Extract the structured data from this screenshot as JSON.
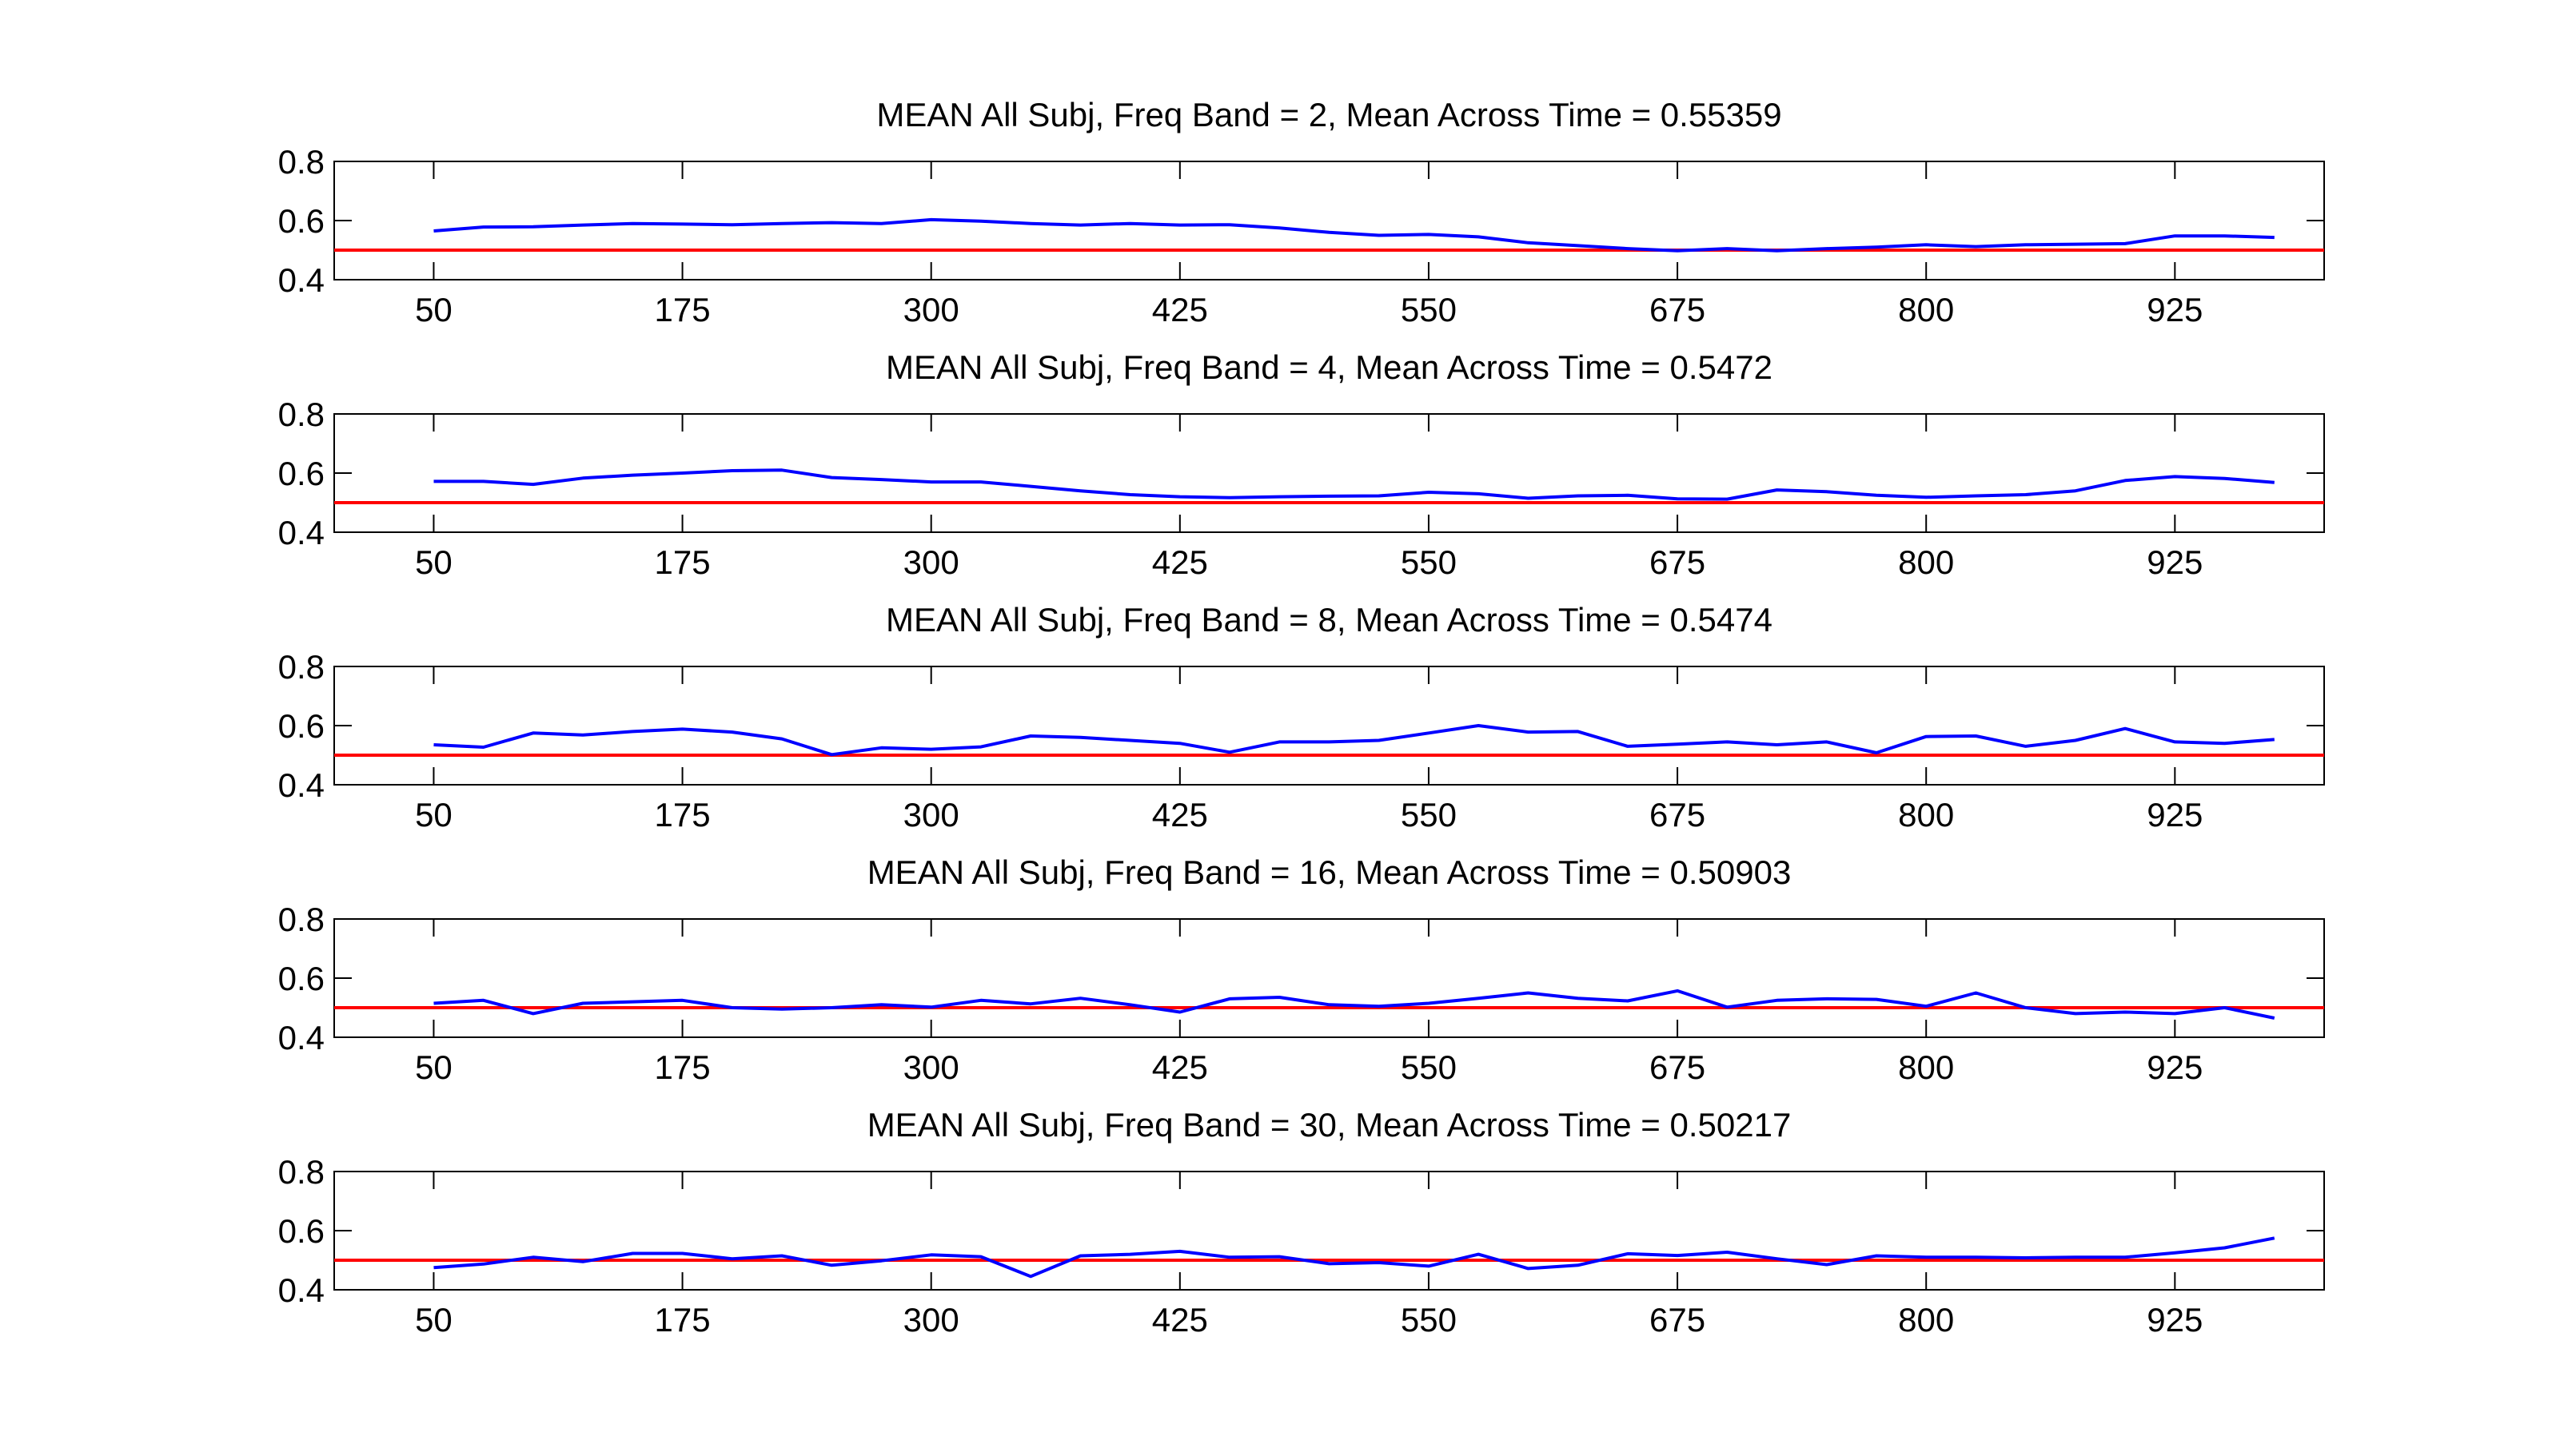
{
  "colors": {
    "series": "#0000ff",
    "reference": "#ff0000",
    "axes": "#000000",
    "background": "#ffffff"
  },
  "chart_data": [
    {
      "type": "line",
      "title": "MEAN All Subj, Freq Band =  2, Mean Across Time = 0.55359",
      "xlabel": "",
      "ylabel": "",
      "xlim": [
        0,
        1000
      ],
      "ylim": [
        0.4,
        0.8
      ],
      "xticks": [
        50,
        175,
        300,
        425,
        550,
        675,
        800,
        925
      ],
      "yticks": [
        0.4,
        0.6,
        0.8
      ],
      "reference_line": 0.5,
      "grid": false,
      "x": [
        50,
        75,
        100,
        125,
        150,
        175,
        200,
        225,
        250,
        275,
        300,
        325,
        350,
        375,
        400,
        425,
        450,
        475,
        500,
        525,
        550,
        575,
        600,
        625,
        650,
        675,
        700,
        725,
        750,
        775,
        800,
        825,
        850,
        875,
        900,
        925,
        950,
        975
      ],
      "series": [
        {
          "values": [
            0.565,
            0.578,
            0.579,
            0.585,
            0.59,
            0.588,
            0.586,
            0.59,
            0.593,
            0.59,
            0.603,
            0.598,
            0.59,
            0.585,
            0.59,
            0.585,
            0.586,
            0.575,
            0.56,
            0.55,
            0.553,
            0.545,
            0.525,
            0.515,
            0.505,
            0.498,
            0.505,
            0.498,
            0.505,
            0.51,
            0.518,
            0.512,
            0.518,
            0.52,
            0.522,
            0.548,
            0.548,
            0.543
          ]
        }
      ]
    },
    {
      "type": "line",
      "title": "MEAN All Subj, Freq Band =  4, Mean Across Time = 0.5472",
      "xlabel": "",
      "ylabel": "",
      "xlim": [
        0,
        1000
      ],
      "ylim": [
        0.4,
        0.8
      ],
      "xticks": [
        50,
        175,
        300,
        425,
        550,
        675,
        800,
        925
      ],
      "yticks": [
        0.4,
        0.6,
        0.8
      ],
      "reference_line": 0.5,
      "grid": false,
      "x": [
        50,
        75,
        100,
        125,
        150,
        175,
        200,
        225,
        250,
        275,
        300,
        325,
        350,
        375,
        400,
        425,
        450,
        475,
        500,
        525,
        550,
        575,
        600,
        625,
        650,
        675,
        700,
        725,
        750,
        775,
        800,
        825,
        850,
        875,
        900,
        925,
        950,
        975
      ],
      "series": [
        {
          "values": [
            0.572,
            0.572,
            0.562,
            0.583,
            0.593,
            0.6,
            0.608,
            0.61,
            0.585,
            0.578,
            0.57,
            0.57,
            0.555,
            0.54,
            0.527,
            0.52,
            0.517,
            0.52,
            0.522,
            0.523,
            0.535,
            0.53,
            0.515,
            0.523,
            0.525,
            0.513,
            0.512,
            0.543,
            0.537,
            0.525,
            0.518,
            0.523,
            0.527,
            0.54,
            0.575,
            0.588,
            0.582,
            0.568
          ]
        }
      ]
    },
    {
      "type": "line",
      "title": "MEAN All Subj, Freq Band =  8, Mean Across Time = 0.5474",
      "xlabel": "",
      "ylabel": "",
      "xlim": [
        0,
        1000
      ],
      "ylim": [
        0.4,
        0.8
      ],
      "xticks": [
        50,
        175,
        300,
        425,
        550,
        675,
        800,
        925
      ],
      "yticks": [
        0.4,
        0.6,
        0.8
      ],
      "reference_line": 0.5,
      "grid": false,
      "x": [
        50,
        75,
        100,
        125,
        150,
        175,
        200,
        225,
        250,
        275,
        300,
        325,
        350,
        375,
        400,
        425,
        450,
        475,
        500,
        525,
        550,
        575,
        600,
        625,
        650,
        675,
        700,
        725,
        750,
        775,
        800,
        825,
        850,
        875,
        900,
        925,
        950,
        975
      ],
      "series": [
        {
          "values": [
            0.535,
            0.527,
            0.575,
            0.568,
            0.58,
            0.588,
            0.578,
            0.555,
            0.502,
            0.525,
            0.52,
            0.528,
            0.565,
            0.56,
            0.55,
            0.54,
            0.51,
            0.545,
            0.545,
            0.55,
            0.575,
            0.6,
            0.578,
            0.58,
            0.53,
            0.537,
            0.545,
            0.535,
            0.545,
            0.508,
            0.563,
            0.565,
            0.53,
            0.55,
            0.59,
            0.545,
            0.54,
            0.553
          ]
        }
      ]
    },
    {
      "type": "line",
      "title": "MEAN All Subj, Freq Band =  16, Mean Across Time = 0.50903",
      "xlabel": "",
      "ylabel": "",
      "xlim": [
        0,
        1000
      ],
      "ylim": [
        0.4,
        0.8
      ],
      "xticks": [
        50,
        175,
        300,
        425,
        550,
        675,
        800,
        925
      ],
      "yticks": [
        0.4,
        0.6,
        0.8
      ],
      "reference_line": 0.5,
      "grid": false,
      "x": [
        50,
        75,
        100,
        125,
        150,
        175,
        200,
        225,
        250,
        275,
        300,
        325,
        350,
        375,
        400,
        425,
        450,
        475,
        500,
        525,
        550,
        575,
        600,
        625,
        650,
        675,
        700,
        725,
        750,
        775,
        800,
        825,
        850,
        875,
        900,
        925,
        950,
        975
      ],
      "series": [
        {
          "values": [
            0.515,
            0.525,
            0.48,
            0.515,
            0.52,
            0.525,
            0.5,
            0.495,
            0.5,
            0.51,
            0.502,
            0.525,
            0.513,
            0.532,
            0.51,
            0.485,
            0.53,
            0.535,
            0.51,
            0.505,
            0.515,
            0.532,
            0.55,
            0.532,
            0.523,
            0.557,
            0.502,
            0.525,
            0.53,
            0.528,
            0.505,
            0.55,
            0.5,
            0.48,
            0.485,
            0.48,
            0.5,
            0.465
          ]
        }
      ]
    },
    {
      "type": "line",
      "title": "MEAN All Subj, Freq Band =  30, Mean Across Time = 0.50217",
      "xlabel": "",
      "ylabel": "",
      "xlim": [
        0,
        1000
      ],
      "ylim": [
        0.4,
        0.8
      ],
      "xticks": [
        50,
        175,
        300,
        425,
        550,
        675,
        800,
        925
      ],
      "yticks": [
        0.4,
        0.6,
        0.8
      ],
      "reference_line": 0.5,
      "grid": false,
      "x": [
        50,
        75,
        100,
        125,
        150,
        175,
        200,
        225,
        250,
        275,
        300,
        325,
        350,
        375,
        400,
        425,
        450,
        475,
        500,
        525,
        550,
        575,
        600,
        625,
        650,
        675,
        700,
        725,
        750,
        775,
        800,
        825,
        850,
        875,
        900,
        925,
        950,
        975
      ],
      "series": [
        {
          "values": [
            0.475,
            0.487,
            0.51,
            0.495,
            0.523,
            0.523,
            0.505,
            0.515,
            0.483,
            0.498,
            0.518,
            0.512,
            0.445,
            0.515,
            0.52,
            0.53,
            0.51,
            0.512,
            0.488,
            0.492,
            0.48,
            0.52,
            0.472,
            0.483,
            0.522,
            0.516,
            0.527,
            0.505,
            0.485,
            0.515,
            0.51,
            0.51,
            0.508,
            0.51,
            0.51,
            0.525,
            0.542,
            0.575
          ]
        }
      ]
    }
  ]
}
